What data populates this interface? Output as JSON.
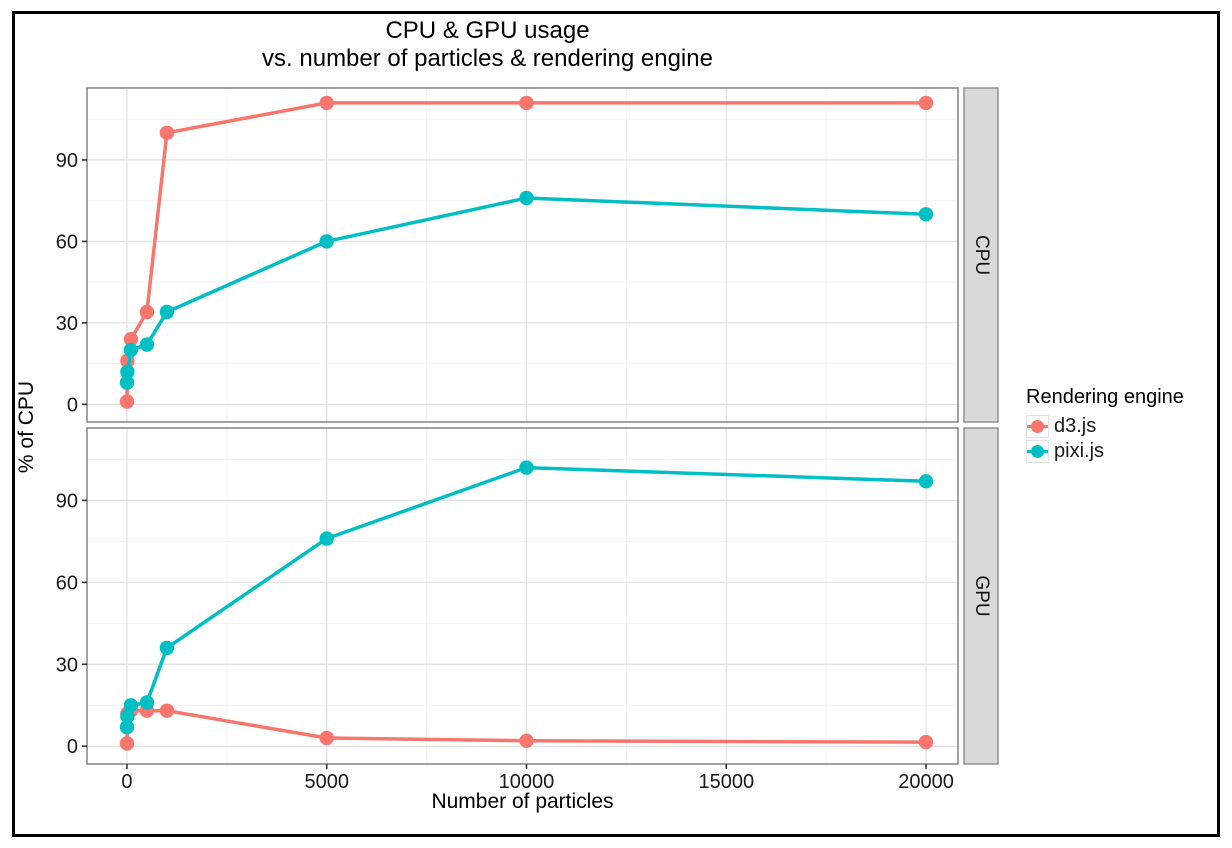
{
  "title": {
    "line1": "CPU & GPU usage",
    "line2": "vs. number of particles & rendering engine"
  },
  "axes": {
    "x_label": "Number of particles",
    "y_label": "% of CPU"
  },
  "legend": {
    "title": "Rendering engine",
    "items": [
      {
        "label": "d3.js",
        "color": "#F8766D"
      },
      {
        "label": "pixi.js",
        "color": "#00BFC4"
      }
    ]
  },
  "colors": {
    "d3js": "#F8766D",
    "pixijs": "#00BFC4",
    "strip_fill": "#D9D9D9",
    "panel_border": "#8a8a8a",
    "grid_major": "#e3e3e3",
    "grid_minor": "#f3f3f3",
    "tick": "#333333",
    "text": "#1a1a1a"
  },
  "chart_data": {
    "type": "line",
    "title": "CPU & GPU usage vs. number of particles & rendering engine",
    "xlabel": "Number of particles",
    "ylabel": "% of CPU",
    "legend_position": "right",
    "grid": true,
    "x_ticks": [
      0,
      5000,
      10000,
      15000,
      20000
    ],
    "y_ticks": [
      0,
      30,
      60,
      90
    ],
    "x_minor_ticks": [
      2500,
      7500,
      12500,
      17500
    ],
    "y_minor_ticks": [
      15,
      45,
      75,
      105
    ],
    "xlim": [
      -1000,
      20800
    ],
    "ylim": [
      -6.5,
      116.5
    ],
    "facets": [
      {
        "name": "CPU",
        "series": [
          {
            "name": "d3.js",
            "color": "#F8766D",
            "points": [
              [
                1,
                1
              ],
              [
                10,
                16
              ],
              [
                100,
                24
              ],
              [
                500,
                34
              ],
              [
                1000,
                100
              ],
              [
                5000,
                111
              ],
              [
                10000,
                111
              ],
              [
                20000,
                111
              ]
            ]
          },
          {
            "name": "pixi.js",
            "color": "#00BFC4",
            "points": [
              [
                1,
                8
              ],
              [
                10,
                12
              ],
              [
                100,
                20
              ],
              [
                500,
                22
              ],
              [
                1000,
                34
              ],
              [
                5000,
                60
              ],
              [
                10000,
                76
              ],
              [
                20000,
                70
              ]
            ]
          }
        ]
      },
      {
        "name": "GPU",
        "series": [
          {
            "name": "d3.js",
            "color": "#F8766D",
            "points": [
              [
                1,
                1
              ],
              [
                10,
                12
              ],
              [
                100,
                13
              ],
              [
                500,
                13
              ],
              [
                1000,
                13
              ],
              [
                5000,
                3
              ],
              [
                10000,
                2
              ],
              [
                20000,
                1.5
              ]
            ]
          },
          {
            "name": "pixi.js",
            "color": "#00BFC4",
            "points": [
              [
                1,
                7
              ],
              [
                10,
                11
              ],
              [
                100,
                15
              ],
              [
                500,
                16
              ],
              [
                1000,
                36
              ],
              [
                5000,
                76
              ],
              [
                10000,
                102
              ],
              [
                20000,
                97
              ]
            ]
          }
        ]
      }
    ]
  }
}
